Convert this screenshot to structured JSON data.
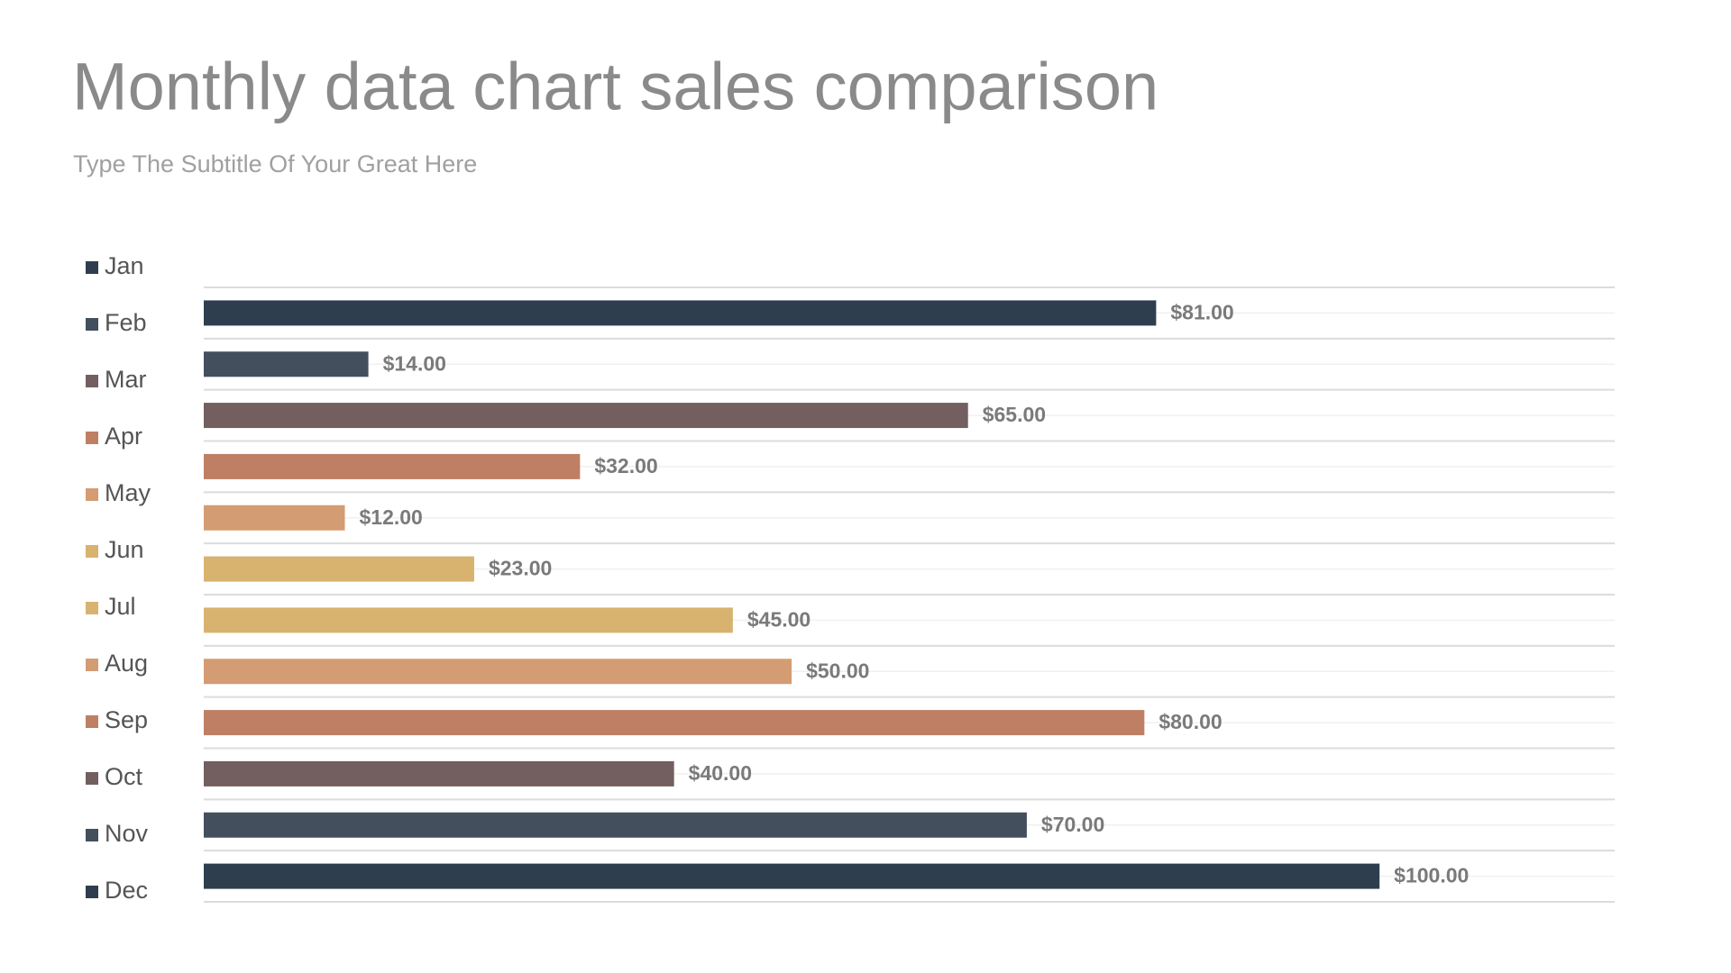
{
  "chart_data": {
    "type": "bar",
    "orientation": "horizontal",
    "title": "Monthly data chart sales comparison",
    "subtitle": "Type The Subtitle Of Your Great Here",
    "categories": [
      "Jan",
      "Feb",
      "Mar",
      "Apr",
      "May",
      "Jun",
      "Jul",
      "Aug",
      "Sep",
      "Oct",
      "Nov",
      "Dec"
    ],
    "values": [
      81,
      14,
      65,
      32,
      12,
      23,
      45,
      50,
      80,
      40,
      70,
      100
    ],
    "value_labels": [
      "$81.00",
      "$14.00",
      "$65.00",
      "$32.00",
      "$12.00",
      "$23.00",
      "$45.00",
      "$50.00",
      "$80.00",
      "$40.00",
      "$70.00",
      "$100.00"
    ],
    "colors": [
      "#2f3e4e",
      "#434f5c",
      "#735f5f",
      "#bf7f64",
      "#d49c72",
      "#d8b26f",
      "#d8b26f",
      "#d49c72",
      "#bf7f64",
      "#735f5f",
      "#434f5c",
      "#2f3e4e"
    ],
    "xlim": [
      0,
      120
    ],
    "legend": "left"
  }
}
